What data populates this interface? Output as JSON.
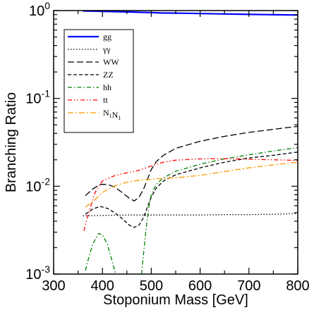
{
  "chart_data": {
    "type": "line",
    "xlabel": "Stoponium Mass  [GeV]",
    "ylabel": "Branching  Ratio",
    "xlim": [
      300,
      800
    ],
    "ylim": [
      0.001,
      1
    ],
    "yscale": "log",
    "grid": false,
    "legend_position": "top-left",
    "x_ticks": [
      300,
      400,
      500,
      600,
      700,
      800
    ],
    "x_tick_labels": [
      "300",
      "400",
      "500",
      "600",
      "700",
      "800"
    ],
    "y_ticks": [
      0.001,
      0.01,
      0.1,
      1
    ],
    "y_tick_labels": [
      {
        "base": "10",
        "exp": "-3"
      },
      {
        "base": "10",
        "exp": "-2"
      },
      {
        "base": "10",
        "exp": "-1"
      },
      {
        "base": "10",
        "exp": "0"
      }
    ],
    "series": [
      {
        "name": "gg",
        "label_parts": [
          {
            "t": "gg"
          }
        ],
        "color": "#0000ff",
        "dash": "",
        "width": 2.2,
        "points": [
          [
            360,
            0.99
          ],
          [
            400,
            0.98
          ],
          [
            450,
            0.965
          ],
          [
            480,
            0.955
          ],
          [
            500,
            0.95
          ],
          [
            520,
            0.94
          ],
          [
            550,
            0.935
          ],
          [
            600,
            0.925
          ],
          [
            650,
            0.915
          ],
          [
            700,
            0.905
          ],
          [
            750,
            0.897
          ],
          [
            800,
            0.89
          ]
        ]
      },
      {
        "name": "γγ",
        "label_parts": [
          {
            "t": "γγ"
          }
        ],
        "color": "#000000",
        "dash": "1.5,2.5",
        "width": 1.3,
        "points": [
          [
            360,
            0.0046
          ],
          [
            400,
            0.00465
          ],
          [
            450,
            0.0047
          ],
          [
            500,
            0.0047
          ],
          [
            550,
            0.0047
          ],
          [
            600,
            0.0047
          ],
          [
            650,
            0.00475
          ],
          [
            700,
            0.00475
          ],
          [
            750,
            0.0048
          ],
          [
            800,
            0.0049
          ]
        ]
      },
      {
        "name": "WW",
        "label_parts": [
          {
            "t": "WW"
          }
        ],
        "color": "#000000",
        "dash": "9,4",
        "width": 1.3,
        "points": [
          [
            365,
            0.0078
          ],
          [
            380,
            0.0093
          ],
          [
            395,
            0.0105
          ],
          [
            410,
            0.0105
          ],
          [
            425,
            0.0098
          ],
          [
            440,
            0.0085
          ],
          [
            455,
            0.0073
          ],
          [
            465,
            0.0068
          ],
          [
            475,
            0.0075
          ],
          [
            485,
            0.0095
          ],
          [
            492,
            0.012
          ],
          [
            500,
            0.0155
          ],
          [
            510,
            0.019
          ],
          [
            525,
            0.0225
          ],
          [
            550,
            0.027
          ],
          [
            600,
            0.0325
          ],
          [
            650,
            0.037
          ],
          [
            700,
            0.041
          ],
          [
            750,
            0.0445
          ],
          [
            800,
            0.048
          ]
        ]
      },
      {
        "name": "ZZ",
        "label_parts": [
          {
            "t": "ZZ"
          }
        ],
        "color": "#000000",
        "dash": "5,3",
        "width": 1.3,
        "points": [
          [
            365,
            0.0048
          ],
          [
            380,
            0.0055
          ],
          [
            395,
            0.0059
          ],
          [
            410,
            0.0056
          ],
          [
            425,
            0.005
          ],
          [
            440,
            0.0043
          ],
          [
            455,
            0.0036
          ],
          [
            465,
            0.0034
          ],
          [
            475,
            0.0036
          ],
          [
            485,
            0.0045
          ],
          [
            492,
            0.0058
          ],
          [
            500,
            0.0075
          ],
          [
            510,
            0.0095
          ],
          [
            525,
            0.0115
          ],
          [
            550,
            0.0135
          ],
          [
            600,
            0.0162
          ],
          [
            650,
            0.0188
          ],
          [
            700,
            0.021
          ],
          [
            750,
            0.0225
          ],
          [
            800,
            0.0245
          ]
        ]
      },
      {
        "name": "hh",
        "label_parts": [
          {
            "t": "hh"
          }
        ],
        "color": "#008000",
        "dash": "6,3,1.5,3",
        "width": 1.3,
        "points": [
          [
            365,
            0.0011
          ],
          [
            370,
            0.0014
          ],
          [
            380,
            0.0022
          ],
          [
            392,
            0.0029
          ],
          [
            400,
            0.0028
          ],
          [
            410,
            0.0022
          ],
          [
            420,
            0.0014
          ],
          [
            427,
            0.001
          ]
        ],
        "points2": [
          [
            480,
            0.001
          ],
          [
            485,
            0.0019
          ],
          [
            490,
            0.0035
          ],
          [
            495,
            0.0058
          ],
          [
            500,
            0.008
          ],
          [
            510,
            0.0105
          ],
          [
            525,
            0.0125
          ],
          [
            550,
            0.0148
          ],
          [
            600,
            0.0178
          ],
          [
            650,
            0.0205
          ],
          [
            700,
            0.0228
          ],
          [
            750,
            0.0252
          ],
          [
            800,
            0.0275
          ]
        ]
      },
      {
        "name": "tt",
        "label_parts": [
          {
            "t": "tt"
          }
        ],
        "color": "#ff0000",
        "dash": "6,3,1.5,3,1.5,3",
        "width": 1.3,
        "points": [
          [
            362,
            0.0031
          ],
          [
            370,
            0.0046
          ],
          [
            385,
            0.0085
          ],
          [
            400,
            0.0115
          ],
          [
            425,
            0.0132
          ],
          [
            450,
            0.0142
          ],
          [
            475,
            0.0152
          ],
          [
            500,
            0.017
          ],
          [
            525,
            0.0188
          ],
          [
            550,
            0.0198
          ],
          [
            600,
            0.0205
          ],
          [
            650,
            0.0206
          ],
          [
            700,
            0.0203
          ],
          [
            750,
            0.02
          ],
          [
            800,
            0.0197
          ]
        ]
      },
      {
        "name": "N1N1",
        "label_parts": [
          {
            "t": "N"
          },
          {
            "t": "1",
            "sub": true
          },
          {
            "t": "N"
          },
          {
            "t": "1",
            "sub": true
          }
        ],
        "color": "#ff9900",
        "dash": "8,3,2,3",
        "width": 1.3,
        "points": [
          [
            365,
            0.0058
          ],
          [
            380,
            0.0066
          ],
          [
            400,
            0.0085
          ],
          [
            425,
            0.0101
          ],
          [
            450,
            0.0111
          ],
          [
            475,
            0.0117
          ],
          [
            500,
            0.012
          ],
          [
            525,
            0.0123
          ],
          [
            550,
            0.0125
          ],
          [
            600,
            0.0133
          ],
          [
            650,
            0.0147
          ],
          [
            700,
            0.0162
          ],
          [
            750,
            0.0175
          ],
          [
            800,
            0.0188
          ]
        ]
      }
    ]
  }
}
